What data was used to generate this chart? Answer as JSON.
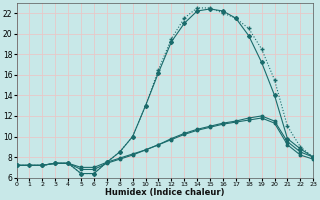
{
  "xlabel": "Humidex (Indice chaleur)",
  "bg_color": "#c8e8e8",
  "grid_color": "#e8c8c8",
  "line_color": "#1a6b6b",
  "xlim": [
    0,
    23
  ],
  "ylim": [
    6,
    23
  ],
  "xticks": [
    0,
    1,
    2,
    3,
    4,
    5,
    6,
    7,
    8,
    9,
    10,
    11,
    12,
    13,
    14,
    15,
    16,
    17,
    18,
    19,
    20,
    21,
    22,
    23
  ],
  "yticks": [
    6,
    8,
    10,
    12,
    14,
    16,
    18,
    20,
    22
  ],
  "curves": [
    {
      "x": [
        0,
        1,
        2,
        3,
        4,
        5,
        6,
        7,
        8,
        9,
        10,
        11,
        12,
        13,
        14,
        15,
        16,
        17,
        18,
        19,
        20,
        21,
        22,
        23
      ],
      "y": [
        7.2,
        7.2,
        7.2,
        7.4,
        7.4,
        6.4,
        6.4,
        7.5,
        8.5,
        10.0,
        13.0,
        16.2,
        19.2,
        21.0,
        22.2,
        22.4,
        22.2,
        21.5,
        19.8,
        17.2,
        14.0,
        9.8,
        8.8,
        8.0
      ],
      "marker": "D",
      "ms": 2.0,
      "lw": 0.8,
      "ls": "solid"
    },
    {
      "x": [
        0,
        1,
        2,
        3,
        4,
        5,
        6,
        7,
        8,
        9,
        10,
        11,
        12,
        13,
        14,
        15,
        16,
        17,
        18,
        19,
        20,
        21,
        22,
        23
      ],
      "y": [
        7.2,
        7.2,
        7.2,
        7.4,
        7.4,
        6.4,
        6.4,
        7.5,
        8.5,
        10.0,
        13.0,
        16.5,
        19.5,
        21.5,
        22.5,
        22.5,
        22.0,
        21.5,
        20.5,
        18.5,
        15.5,
        11.0,
        9.0,
        8.0
      ],
      "marker": "+",
      "ms": 2.5,
      "lw": 0.8,
      "ls": "dotted"
    },
    {
      "x": [
        0,
        2,
        3,
        4,
        5,
        6,
        7,
        8,
        9,
        10,
        11,
        12,
        13,
        14,
        15,
        16,
        17,
        18,
        19,
        20,
        21,
        22,
        23
      ],
      "y": [
        7.2,
        7.2,
        7.4,
        7.4,
        6.8,
        6.8,
        7.4,
        7.8,
        8.2,
        8.7,
        9.2,
        9.8,
        10.3,
        10.7,
        11.0,
        11.3,
        11.5,
        11.8,
        12.0,
        11.5,
        9.5,
        8.5,
        8.0
      ],
      "marker": "o",
      "ms": 1.8,
      "lw": 0.8,
      "ls": "solid"
    },
    {
      "x": [
        0,
        2,
        3,
        4,
        5,
        6,
        7,
        8,
        9,
        10,
        11,
        12,
        13,
        14,
        15,
        16,
        17,
        18,
        19,
        20,
        21,
        22,
        23
      ],
      "y": [
        7.2,
        7.2,
        7.4,
        7.4,
        7.0,
        7.0,
        7.5,
        7.9,
        8.3,
        8.7,
        9.2,
        9.7,
        10.2,
        10.6,
        10.9,
        11.2,
        11.4,
        11.6,
        11.8,
        11.3,
        9.2,
        8.2,
        7.8
      ],
      "marker": "o",
      "ms": 1.8,
      "lw": 0.8,
      "ls": "solid"
    }
  ]
}
